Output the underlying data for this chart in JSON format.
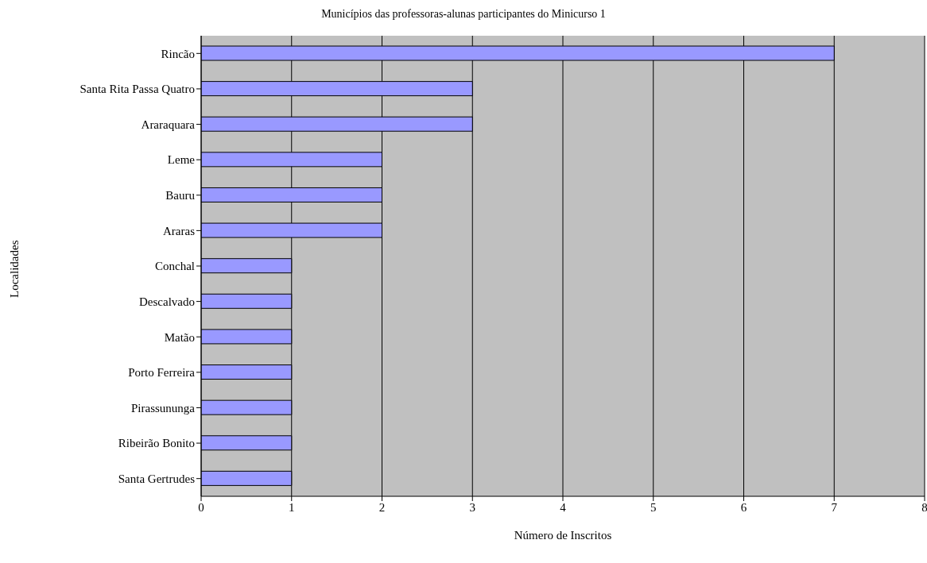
{
  "chart_data": {
    "type": "bar",
    "orientation": "horizontal",
    "title": "Municípios das professoras-alunas participantes do Minicurso 1",
    "xlabel": "Número de Inscritos",
    "ylabel": "Localidades",
    "categories": [
      "Rincão",
      "Santa Rita Passa Quatro",
      "Araraquara",
      "Leme",
      "Bauru",
      "Araras",
      "Conchal",
      "Descalvado",
      "Matão",
      "Porto Ferreira",
      "Pirassununga",
      "Ribeirão Bonito",
      "Santa Gertrudes"
    ],
    "values": [
      7,
      3,
      3,
      2,
      2,
      2,
      1,
      1,
      1,
      1,
      1,
      1,
      1
    ],
    "color": "#9999ff",
    "xlim": [
      0,
      8
    ],
    "xticks": [
      0,
      1,
      2,
      3,
      4,
      5,
      6,
      7,
      8
    ],
    "grid": "x"
  }
}
